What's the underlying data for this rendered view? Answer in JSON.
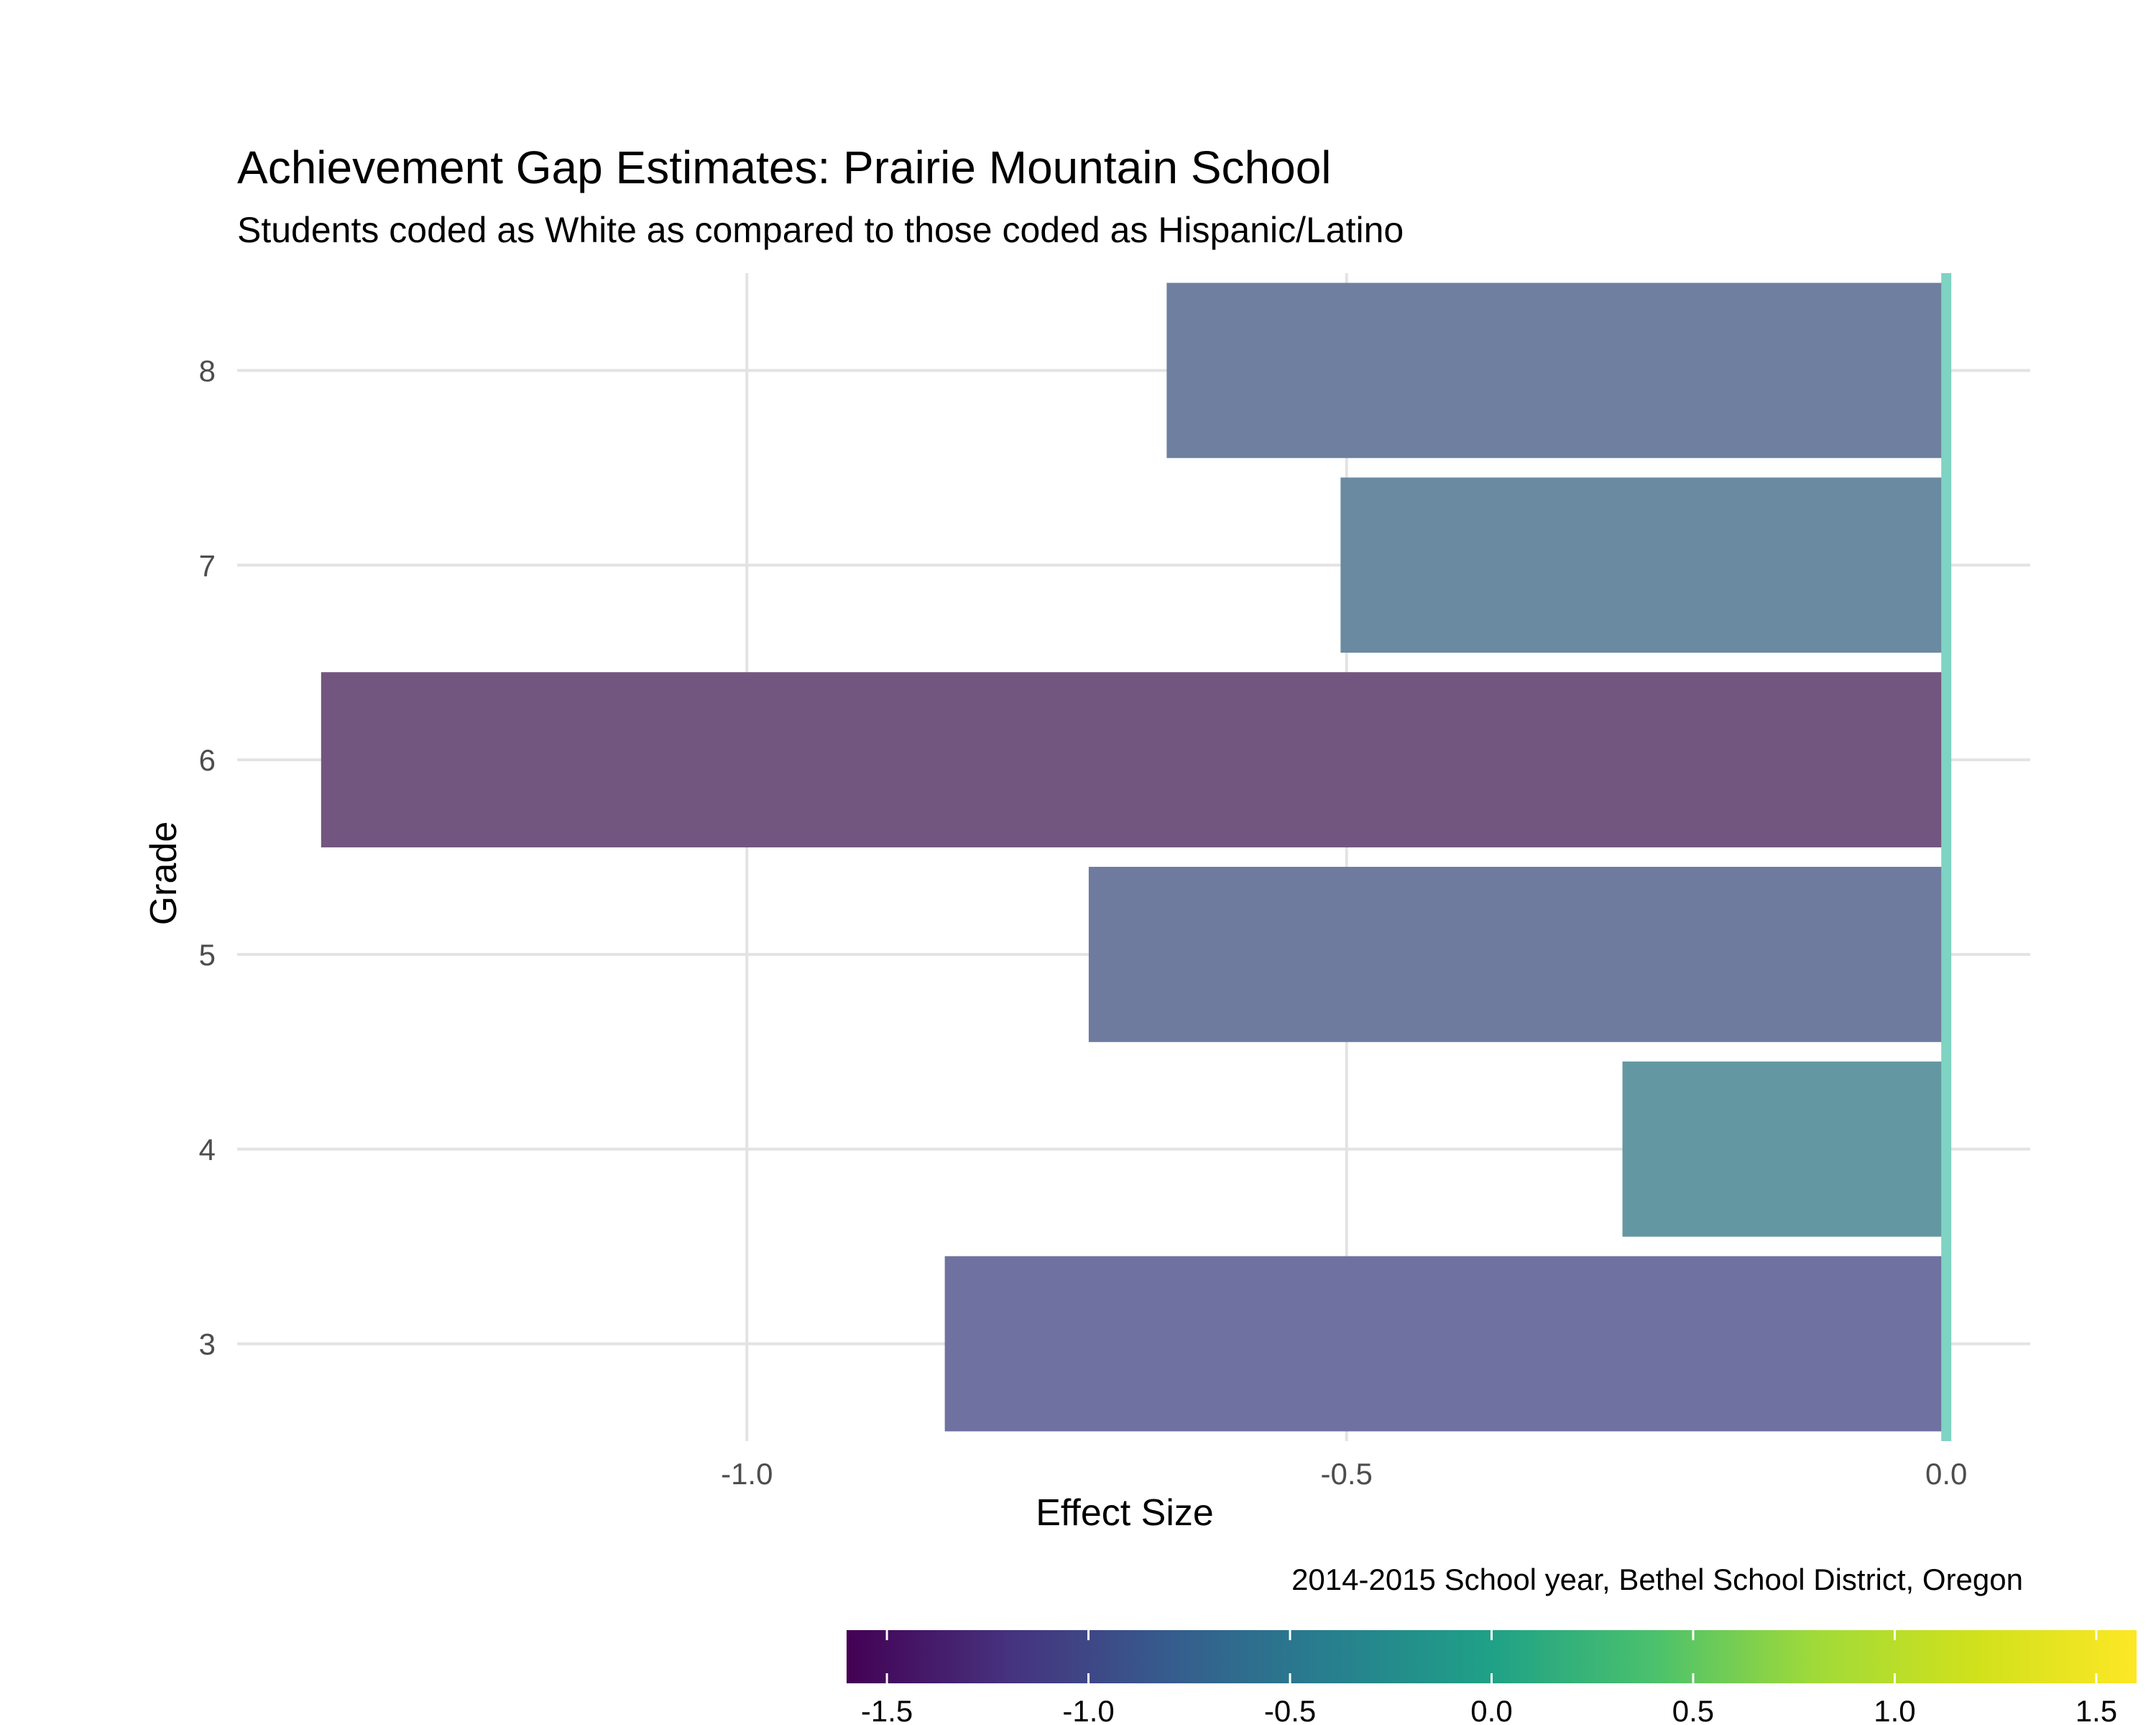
{
  "chart_data": {
    "type": "bar",
    "orientation": "horizontal",
    "title": "Achievement Gap Estimates: Prairie Mountain School",
    "subtitle": "Students coded as White as compared to those coded as Hispanic/Latino",
    "xlabel": "Effect Size",
    "ylabel": "Grade",
    "caption": "2014-2015 School year, Bethel School District, Oregon",
    "categories": [
      "3",
      "4",
      "5",
      "6",
      "7",
      "8"
    ],
    "values": [
      -0.835,
      -0.27,
      -0.715,
      -1.355,
      -0.505,
      -0.65
    ],
    "xlim": [
      -1.425,
      0.07
    ],
    "x_ticks": [
      -1.0,
      -0.5,
      0.0
    ],
    "x_tick_labels": [
      "-1.0",
      "-0.5",
      "0.0"
    ],
    "grid": true,
    "reference_line": {
      "x": 0,
      "color": "#7fd3c2"
    },
    "colorbar": {
      "palette": "viridis",
      "range": [
        -1.6,
        1.6
      ],
      "ticks": [
        -1.5,
        -1.0,
        -0.5,
        0.0,
        0.5,
        1.0,
        1.5
      ],
      "tick_labels": [
        "-1.5",
        "-1.0",
        "-0.5",
        "0.0",
        "0.5",
        "1.0",
        "1.5"
      ],
      "position": "bottom-right"
    },
    "bar_colors": [
      "#6f72a0",
      "#6398a2",
      "#6f7a9f",
      "#73567f",
      "#6a8aa2",
      "#6f7f9f"
    ]
  }
}
